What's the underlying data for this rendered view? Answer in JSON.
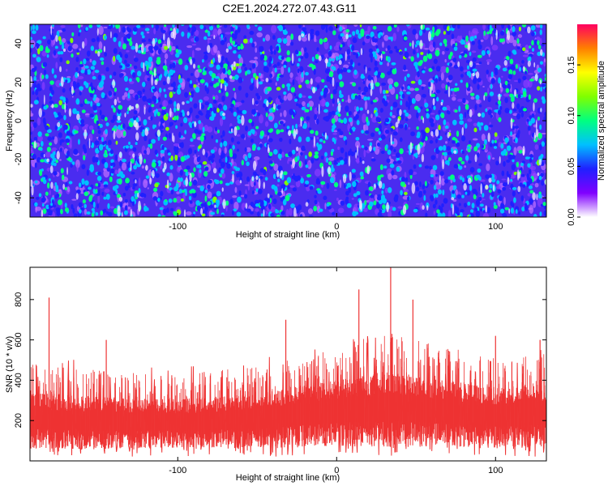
{
  "title": "C2E1.2024.272.07.43.G11",
  "chart_data": [
    {
      "type": "heatmap",
      "xlabel": "Height of straight line (km)",
      "ylabel": "Frequency (Hz)",
      "xlim": [
        -193,
        132
      ],
      "ylim": [
        -50,
        50
      ],
      "xticks": [
        -100,
        0,
        100
      ],
      "yticks": [
        -40,
        -20,
        0,
        20,
        40
      ],
      "colorbar": {
        "label": "Normalized spectral amplitude",
        "range": [
          0.0,
          0.19
        ],
        "ticks": [
          0.0,
          0.05,
          0.1,
          0.15
        ],
        "tick_labels": [
          "0.00",
          "0.05",
          "0.10",
          "0.15"
        ],
        "colormap": [
          "#ffffff",
          "#8000ff",
          "#2020ff",
          "#00c0ff",
          "#00ff80",
          "#80ff00",
          "#ffff00",
          "#ff8000",
          "#ff0060"
        ]
      },
      "background_level": 0.02
    },
    {
      "type": "line",
      "xlabel": "Height of straight line (km)",
      "ylabel": "SNR (10 * v/v)",
      "xlim": [
        -193,
        132
      ],
      "ylim": [
        0,
        960
      ],
      "xticks": [
        -100,
        0,
        100
      ],
      "yticks": [
        200,
        400,
        600,
        800
      ],
      "color": "#ee3333",
      "peaks": [
        {
          "x": -181,
          "y": 810
        },
        {
          "x": -145,
          "y": 600
        },
        {
          "x": -32,
          "y": 700
        },
        {
          "x": 14,
          "y": 850
        },
        {
          "x": 34,
          "y": 960
        },
        {
          "x": 48,
          "y": 800
        },
        {
          "x": 100,
          "y": 620
        },
        {
          "x": 128,
          "y": 600
        }
      ],
      "envelope": [
        {
          "x": -193,
          "baseline": 160,
          "spread": 280
        },
        {
          "x": -150,
          "baseline": 150,
          "spread": 260
        },
        {
          "x": -100,
          "baseline": 150,
          "spread": 240
        },
        {
          "x": -50,
          "baseline": 160,
          "spread": 270
        },
        {
          "x": 0,
          "baseline": 190,
          "spread": 330
        },
        {
          "x": 30,
          "baseline": 200,
          "spread": 380
        },
        {
          "x": 60,
          "baseline": 190,
          "spread": 340
        },
        {
          "x": 100,
          "baseline": 170,
          "spread": 300
        },
        {
          "x": 132,
          "baseline": 180,
          "spread": 310
        }
      ]
    }
  ]
}
